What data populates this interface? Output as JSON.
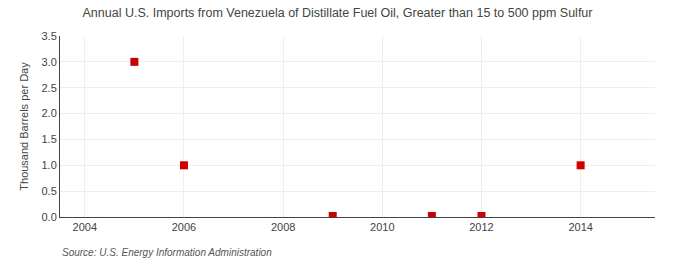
{
  "chart_data": {
    "type": "scatter",
    "title": "Annual U.S. Imports from Venezuela of Distillate Fuel Oil, Greater than 15 to 500 ppm Sulfur",
    "ylabel": "Thousand Barrels per Day",
    "annotations": [
      "Source: U.S. Energy Information Administration"
    ],
    "x": [
      2005,
      2006,
      2009,
      2011,
      2012,
      2014
    ],
    "values": [
      3.0,
      1.0,
      0.02,
      0.02,
      0.02,
      1.0
    ],
    "color": "#CC0000",
    "marker": "square",
    "xlim": [
      2003.5,
      2015.5
    ],
    "xticks": [
      2004,
      2006,
      2008,
      2010,
      2012,
      2014
    ],
    "ylim": [
      0.0,
      3.5
    ],
    "yticks": [
      {
        "value": 0.0,
        "label": "0.0"
      },
      0.5,
      {
        "value": 1.0,
        "label": "1.0"
      },
      1.5,
      {
        "value": 2.0,
        "label": "2.0"
      },
      2.5,
      {
        "value": 3.0,
        "label": "3.0"
      },
      3.5
    ],
    "grid": true
  }
}
